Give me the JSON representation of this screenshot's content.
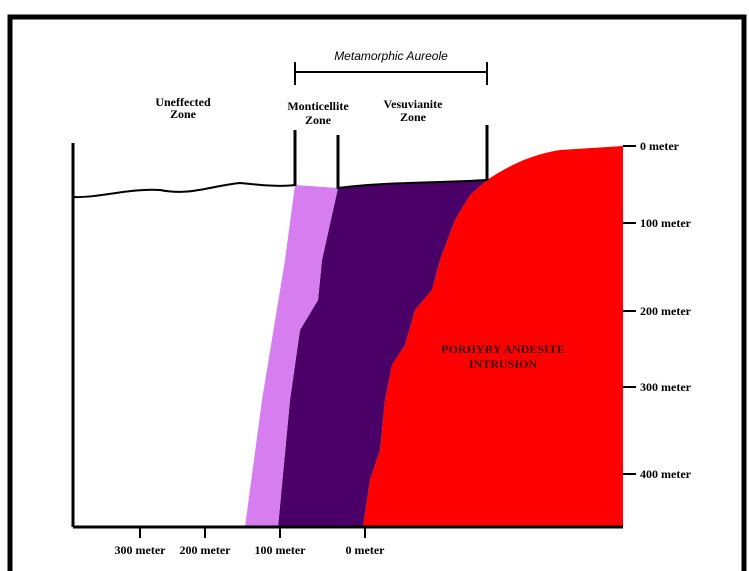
{
  "aureole_label": "Metamorphic Aureole",
  "zones": [
    {
      "lines": [
        "Uneffected",
        "Zone"
      ]
    },
    {
      "lines": [
        "Monticellite",
        "Zone"
      ]
    },
    {
      "lines": [
        "Vesuvianite",
        "Zone"
      ]
    }
  ],
  "intrusion_label": {
    "lines": [
      "PORHYRY ANDESITE",
      "INTRUSION"
    ]
  },
  "depth_scale": [
    "0 meter",
    "100 meter",
    "200 meter",
    "300 meter",
    "400 meter"
  ],
  "distance_scale": [
    "300 meter",
    "200 meter",
    "100 meter",
    "0 meter"
  ]
}
